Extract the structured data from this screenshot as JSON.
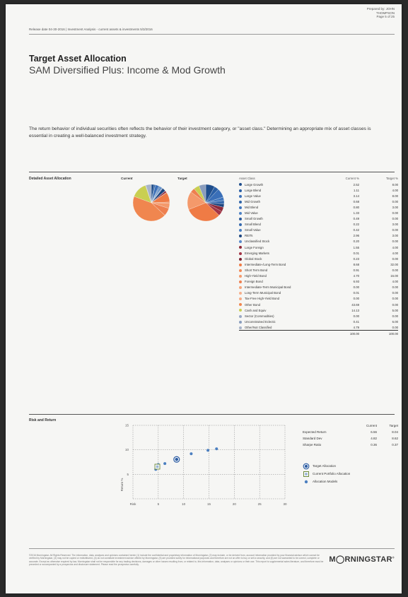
{
  "header": {
    "prepared_by": "Prepared by: JOHN",
    "prepared_name": "THOMPSON",
    "page": "Page 5 of 25",
    "release": "Release date 04-30-2016 | Investment Analysis - current assets & investments 5/3/2016"
  },
  "title": "Target Asset Allocation",
  "subtitle": "SAM Diversified Plus: Income & Mod Growth",
  "intro": "The return behavior of individual securities often reflects the behavior of their investment category, or \"asset class.\" Determining an appropriate mix of asset classes is essential in creating a well-balanced investment strategy.",
  "allocation": {
    "section_label": "Detailed Asset Allocation",
    "pie_current_label": "Current",
    "pie_target_label": "Target",
    "col_class": "Asset Class",
    "col_current": "Current %",
    "col_target": "Target %",
    "rows": [
      {
        "name": "Large Growth",
        "current": "2.52",
        "target": "8.00",
        "color": "#1f4e8c"
      },
      {
        "name": "Large Blend",
        "current": "1.11",
        "target": "4.00",
        "color": "#2a5fa6"
      },
      {
        "name": "Large Value",
        "current": "3.14",
        "target": "8.00",
        "color": "#3a6fb8"
      },
      {
        "name": "Mid Growth",
        "current": "0.68",
        "target": "0.00",
        "color": "#2f64a8"
      },
      {
        "name": "Mid Blend",
        "current": "0.80",
        "target": "3.00",
        "color": "#3f75bd"
      },
      {
        "name": "Mid Value",
        "current": "1.33",
        "target": "0.00",
        "color": "#4d82c6"
      },
      {
        "name": "Small Growth",
        "current": "0.49",
        "target": "0.00",
        "color": "#2b5a9b"
      },
      {
        "name": "Small Blend",
        "current": "0.22",
        "target": "3.00",
        "color": "#3669ad"
      },
      {
        "name": "Small Value",
        "current": "0.42",
        "target": "0.00",
        "color": "#4a7fc2"
      },
      {
        "name": "REITs",
        "current": "2.96",
        "target": "3.00",
        "color": "#1d4680"
      },
      {
        "name": "Unclassified Stock",
        "current": "0.20",
        "target": "0.00",
        "color": "#5b8bcc"
      },
      {
        "name": "Large Foreign",
        "current": "1.55",
        "target": "4.00",
        "color": "#8e2a3a"
      },
      {
        "name": "Emerging Markets",
        "current": "0.01",
        "target": "4.00",
        "color": "#a33446"
      },
      {
        "name": "Global Stock",
        "current": "0.23",
        "target": "0.00",
        "color": "#7a2232"
      },
      {
        "name": "Intermediate-/Long-Term Bond",
        "current": "8.68",
        "target": "32.00",
        "color": "#ef7b45"
      },
      {
        "name": "Short Term Bond",
        "current": "0.91",
        "target": "0.00",
        "color": "#f28a58"
      },
      {
        "name": "High-Yield Bond",
        "current": "4.70",
        "target": "16.00",
        "color": "#f4996b"
      },
      {
        "name": "Foreign Bond",
        "current": "6.93",
        "target": "4.00",
        "color": "#ee8050"
      },
      {
        "name": "Intermediate-Term Municipal Bond",
        "current": "0.00",
        "target": "0.00",
        "color": "#f5a37a"
      },
      {
        "name": "Long-Term Municipal Bond",
        "current": "0.01",
        "target": "0.00",
        "color": "#f7b08c"
      },
      {
        "name": "Tax-Free High-Yield Bond",
        "current": "0.00",
        "target": "0.00",
        "color": "#f6ab84"
      },
      {
        "name": "Other Bond",
        "current": "43.69",
        "target": "0.00",
        "color": "#f0864f"
      },
      {
        "name": "Cash and Equiv",
        "current": "14.13",
        "target": "5.00",
        "color": "#c9cf52"
      },
      {
        "name": "Sector (Commodities)",
        "current": "0.00",
        "target": "0.00",
        "color": "#9aa9c4"
      },
      {
        "name": "Unconstrained Eclectic",
        "current": "0.41",
        "target": "6.00",
        "color": "#8a9dbd"
      },
      {
        "name": "Other/Not Classified",
        "current": "4.79",
        "target": "0.00",
        "color": "#a7b3c9"
      }
    ],
    "total_current": "100.00",
    "total_target": "100.00"
  },
  "risk": {
    "section_label": "Risk and Return",
    "y_label": "Return %",
    "stats_head_current": "Current",
    "stats_head_target": "Target",
    "stats": [
      {
        "label": "Expected Return",
        "current": "6.56",
        "target": "8.04"
      },
      {
        "label": "Standard Dev",
        "current": "4.82",
        "target": "8.62"
      },
      {
        "label": "Sharpe Ratio",
        "current": "0.36",
        "target": "0.37"
      }
    ],
    "legend": {
      "target": "Target Allocation",
      "current": "Current Portfolio Allocation",
      "models": "Allocation Models"
    }
  },
  "chart_data": {
    "type": "scatter",
    "xlabel": "",
    "ylabel": "Return %",
    "x_ticks": [
      "Risk",
      "5",
      "10",
      "15",
      "20",
      "25",
      "30"
    ],
    "y_ticks": [
      "15",
      "10",
      "5"
    ],
    "xlim": [
      0,
      30
    ],
    "ylim": [
      0,
      15
    ],
    "series": [
      {
        "name": "Target Allocation",
        "points": [
          [
            8.62,
            8.04
          ]
        ]
      },
      {
        "name": "Current Portfolio Allocation",
        "points": [
          [
            4.82,
            6.56
          ]
        ]
      },
      {
        "name": "Allocation Models",
        "points": [
          [
            4.5,
            6.0
          ],
          [
            5.0,
            7.0
          ],
          [
            6.3,
            7.2
          ],
          [
            11.5,
            9.2
          ],
          [
            14.8,
            9.9
          ],
          [
            16.5,
            10.2
          ]
        ]
      }
    ]
  },
  "footer": {
    "disclaimer": "©2016 Morningstar. All Rights Reserved. The information, data, analyses and opinions contained herein (1) include the confidential and proprietary information of Morningstar, (2) may include, or be derived from, account information provided by your financial advisor which cannot be verified by Morningstar, (3) may not be copied or redistributed, (4) do not constitute investment advice offered by Morningstar, (5) are provided solely for informational purposes and therefore are not an offer to buy or sell a security, and (6) are not warranted to be correct, complete or accurate. Except as otherwise required by law, Morningstar shall not be responsible for any trading decisions, damages or other losses resulting from, or related to, this information, data, analyses or opinions or their use. This report is supplemental sales literature, and therefore must be preceded or accompanied by a prospectus and disclosure statement. Please read the prospectus carefully.",
    "logo": "M◯RNINGSTAR",
    "logo_mark": "®"
  }
}
